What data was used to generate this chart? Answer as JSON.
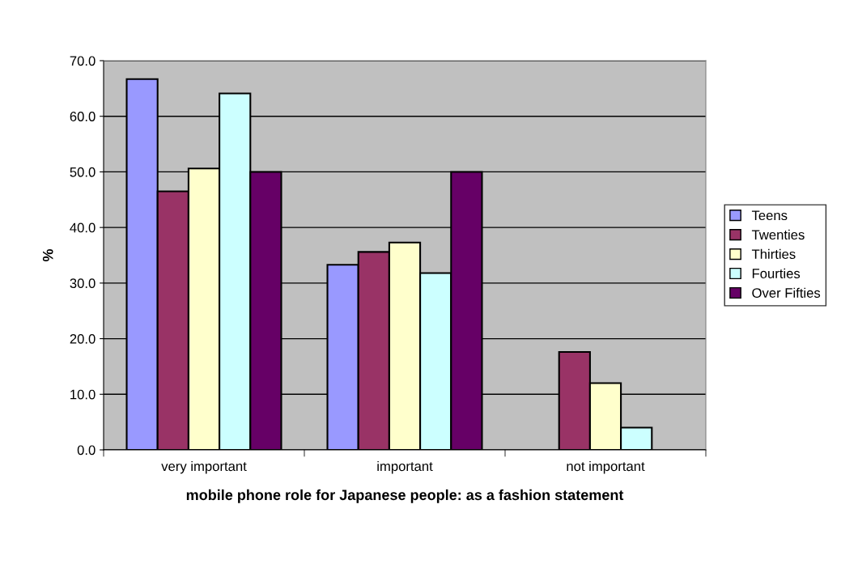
{
  "chart_data": {
    "type": "bar",
    "xlabel": "mobile phone role for Japanese people: as a fashion statement",
    "ylabel": "%",
    "categories": [
      "very important",
      "important",
      "not important"
    ],
    "series": [
      {
        "name": "Teens",
        "color": "#9999ff",
        "values": [
          66.7,
          33.3,
          null
        ]
      },
      {
        "name": "Twenties",
        "color": "#993366",
        "values": [
          46.5,
          35.6,
          17.6
        ]
      },
      {
        "name": "Thirties",
        "color": "#ffffcc",
        "values": [
          50.6,
          37.3,
          12.0
        ]
      },
      {
        "name": "Fourties",
        "color": "#ccffff",
        "values": [
          64.1,
          31.8,
          4.0
        ]
      },
      {
        "name": "Over Fifties",
        "color": "#660066",
        "values": [
          50.0,
          50.0,
          null
        ]
      }
    ],
    "ylim": [
      0,
      70
    ],
    "yticks": [
      {
        "value": 0,
        "label": "0.0"
      },
      {
        "value": 10,
        "label": "10.0"
      },
      {
        "value": 20,
        "label": "20.0"
      },
      {
        "value": 30,
        "label": "30.0"
      },
      {
        "value": 40,
        "label": "40.0"
      },
      {
        "value": 50,
        "label": "50.0"
      },
      {
        "value": 60,
        "label": "60.0"
      },
      {
        "value": 70,
        "label": "70.0"
      }
    ],
    "grid": "y",
    "legend": "right"
  }
}
